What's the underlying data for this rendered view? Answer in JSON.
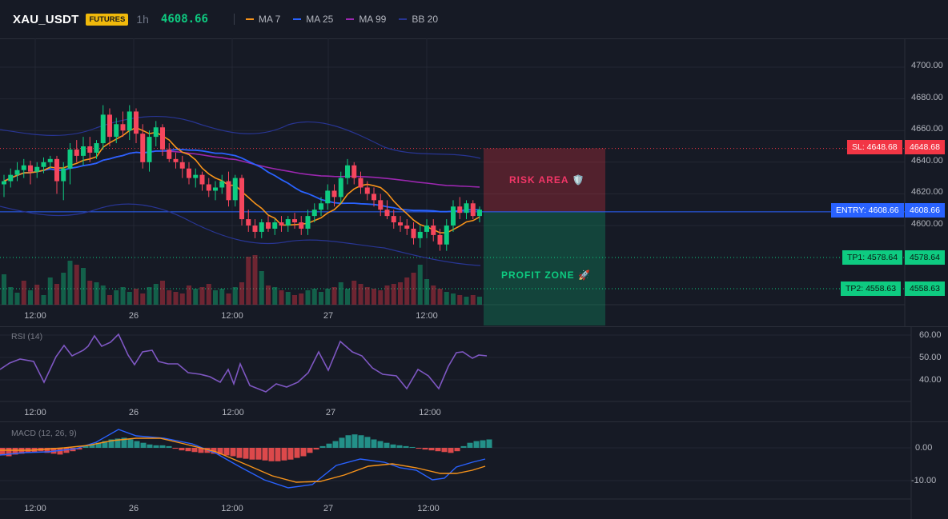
{
  "header": {
    "symbol": "XAU_USDT",
    "badge": "FUTURES",
    "timeframe": "1h",
    "price": "4608.66"
  },
  "indicators": [
    {
      "label": "MA 7",
      "color": "#f7931a"
    },
    {
      "label": "MA 25",
      "color": "#2962ff"
    },
    {
      "label": "MA 99",
      "color": "#9c27b0"
    },
    {
      "label": "BB 20",
      "color": "#283593"
    }
  ],
  "price_axis": [
    "4700.00",
    "4680.00",
    "4660.00",
    "4640.00",
    "4620.00",
    "4600.00"
  ],
  "time_axis": [
    "12:00",
    "26",
    "12:00",
    "27",
    "12:00"
  ],
  "zones": {
    "risk_label": "RISK AREA 🛡️",
    "profit_label": "PROFIT ZONE 🚀",
    "risk_color": "#f23645",
    "profit_color": "#0ecb81"
  },
  "levels": {
    "sl_tag": "SL: 4648.68",
    "sl_price": "4648.68",
    "entry_tag": "ENTRY: 4608.66",
    "entry_price": "4608.66",
    "tp1_tag": "TP1: 4578.64",
    "tp1_price": "4578.64",
    "tp2_tag": "TP2: 4558.63",
    "tp2_price": "4558.63"
  },
  "rsi": {
    "title": "RSI (14)",
    "axis": [
      "60.00",
      "50.00",
      "40.00"
    ]
  },
  "macd": {
    "title": "MACD (12, 26, 9)",
    "axis": [
      "0.00",
      "-10.00"
    ]
  },
  "chart_data": {
    "type": "candlestick",
    "symbol": "XAU_USDT",
    "timeframe": "1h",
    "time_ticks": [
      "12:00",
      "26",
      "12:00",
      "27",
      "12:00"
    ],
    "ylim": [
      4592,
      4706
    ],
    "levels": {
      "sl": 4648.68,
      "entry": 4608.66,
      "tp1": 4578.64,
      "tp2": 4558.63
    },
    "candles": [
      [
        4626,
        4632,
        4618,
        4628
      ],
      [
        4628,
        4636,
        4624,
        4632
      ],
      [
        4632,
        4640,
        4628,
        4635
      ],
      [
        4635,
        4642,
        4630,
        4638
      ],
      [
        4638,
        4641,
        4626,
        4634
      ],
      [
        4634,
        4640,
        4630,
        4637
      ],
      [
        4637,
        4643,
        4633,
        4640
      ],
      [
        4640,
        4644,
        4636,
        4642
      ],
      [
        4642,
        4644,
        4620,
        4628
      ],
      [
        4628,
        4640,
        4616,
        4636
      ],
      [
        4636,
        4652,
        4626,
        4648
      ],
      [
        4648,
        4654,
        4640,
        4644
      ],
      [
        4644,
        4656,
        4638,
        4650
      ],
      [
        4650,
        4656,
        4640,
        4646
      ],
      [
        4646,
        4654,
        4642,
        4652
      ],
      [
        4652,
        4676,
        4648,
        4670
      ],
      [
        4670,
        4674,
        4650,
        4656
      ],
      [
        4656,
        4668,
        4652,
        4664
      ],
      [
        4664,
        4672,
        4656,
        4660
      ],
      [
        4660,
        4676,
        4654,
        4672
      ],
      [
        4672,
        4674,
        4652,
        4658
      ],
      [
        4658,
        4664,
        4636,
        4640
      ],
      [
        4640,
        4660,
        4634,
        4656
      ],
      [
        4656,
        4666,
        4650,
        4662
      ],
      [
        4662,
        4664,
        4644,
        4648
      ],
      [
        4648,
        4652,
        4640,
        4642
      ],
      [
        4642,
        4646,
        4636,
        4640
      ],
      [
        4640,
        4644,
        4630,
        4636
      ],
      [
        4636,
        4640,
        4626,
        4630
      ],
      [
        4630,
        4636,
        4624,
        4632
      ],
      [
        4632,
        4634,
        4622,
        4626
      ],
      [
        4626,
        4630,
        4618,
        4622
      ],
      [
        4622,
        4628,
        4616,
        4624
      ],
      [
        4624,
        4632,
        4620,
        4628
      ],
      [
        4628,
        4634,
        4612,
        4616
      ],
      [
        4616,
        4632,
        4612,
        4630
      ],
      [
        4630,
        4632,
        4600,
        4604
      ],
      [
        4604,
        4610,
        4596,
        4600
      ],
      [
        4600,
        4604,
        4592,
        4596
      ],
      [
        4596,
        4604,
        4592,
        4602
      ],
      [
        4602,
        4606,
        4596,
        4598
      ],
      [
        4598,
        4604,
        4594,
        4602
      ],
      [
        4602,
        4606,
        4596,
        4600
      ],
      [
        4600,
        4606,
        4596,
        4604
      ],
      [
        4604,
        4608,
        4598,
        4602
      ],
      [
        4602,
        4606,
        4594,
        4598
      ],
      [
        4598,
        4610,
        4594,
        4606
      ],
      [
        4606,
        4614,
        4602,
        4610
      ],
      [
        4610,
        4618,
        4606,
        4614
      ],
      [
        4614,
        4626,
        4610,
        4622
      ],
      [
        4622,
        4626,
        4612,
        4618
      ],
      [
        4618,
        4634,
        4614,
        4630
      ],
      [
        4630,
        4642,
        4626,
        4638
      ],
      [
        4638,
        4640,
        4626,
        4630
      ],
      [
        4630,
        4634,
        4620,
        4624
      ],
      [
        4624,
        4628,
        4616,
        4620
      ],
      [
        4620,
        4624,
        4612,
        4616
      ],
      [
        4616,
        4620,
        4606,
        4610
      ],
      [
        4610,
        4616,
        4604,
        4606
      ],
      [
        4606,
        4610,
        4598,
        4602
      ],
      [
        4602,
        4606,
        4596,
        4600
      ],
      [
        4600,
        4604,
        4594,
        4598
      ],
      [
        4598,
        4602,
        4588,
        4592
      ],
      [
        4592,
        4600,
        4586,
        4596
      ],
      [
        4596,
        4604,
        4592,
        4600
      ],
      [
        4600,
        4604,
        4590,
        4594
      ],
      [
        4594,
        4598,
        4584,
        4588
      ],
      [
        4588,
        4604,
        4584,
        4600
      ],
      [
        4600,
        4616,
        4596,
        4612
      ],
      [
        4612,
        4618,
        4604,
        4608
      ],
      [
        4608,
        4616,
        4604,
        4614
      ],
      [
        4614,
        4616,
        4604,
        4606
      ],
      [
        4606,
        4612,
        4602,
        4610
      ]
    ],
    "volume": [
      38,
      22,
      15,
      30,
      18,
      25,
      12,
      34,
      26,
      40,
      55,
      50,
      46,
      30,
      28,
      24,
      12,
      18,
      22,
      16,
      20,
      14,
      22,
      26,
      30,
      18,
      16,
      14,
      24,
      20,
      22,
      26,
      18,
      20,
      14,
      22,
      28,
      60,
      62,
      42,
      24,
      22,
      18,
      16,
      12,
      14,
      18,
      20,
      16,
      20,
      22,
      28,
      20,
      30,
      26,
      22,
      20,
      18,
      24,
      26,
      28,
      34,
      40,
      50,
      32,
      24,
      20,
      16,
      14,
      12,
      10,
      12,
      10
    ],
    "volume_bull": [
      true,
      true,
      true,
      false,
      true,
      false,
      true,
      true,
      false,
      true,
      true,
      false,
      true,
      false,
      true,
      true,
      false,
      true,
      true,
      true,
      false,
      false,
      true,
      true,
      false,
      false,
      false,
      false,
      false,
      true,
      false,
      false,
      true,
      true,
      false,
      true,
      false,
      false,
      false,
      true,
      false,
      true,
      false,
      true,
      false,
      false,
      true,
      true,
      true,
      true,
      false,
      true,
      true,
      false,
      false,
      false,
      false,
      false,
      false,
      false,
      false,
      false,
      false,
      true,
      true,
      false,
      false,
      true,
      true,
      false,
      true,
      false,
      true
    ]
  }
}
